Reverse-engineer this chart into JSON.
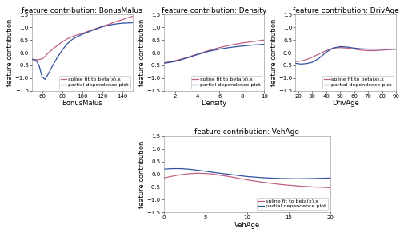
{
  "plots": [
    {
      "title": "feature contribution: BonusMalus",
      "xlabel": "BonusMalus",
      "ylabel": "feature contribution",
      "xlim": [
        50,
        150
      ],
      "ylim": [
        -1.5,
        1.5
      ],
      "xticks": [
        60,
        80,
        100,
        120,
        140
      ],
      "yticks": [
        -1.5,
        -1.0,
        -0.5,
        0.0,
        0.5,
        1.0,
        1.5
      ],
      "spline_x": [
        50,
        54,
        57,
        60,
        63,
        66,
        70,
        75,
        80,
        85,
        90,
        95,
        100,
        105,
        110,
        115,
        120,
        125,
        130,
        135,
        140,
        145,
        150
      ],
      "spline_y": [
        -0.28,
        -0.28,
        -0.27,
        -0.25,
        -0.15,
        -0.02,
        0.12,
        0.28,
        0.42,
        0.54,
        0.63,
        0.7,
        0.76,
        0.83,
        0.9,
        0.97,
        1.04,
        1.1,
        1.17,
        1.24,
        1.3,
        1.37,
        1.43
      ],
      "pdp_x": [
        50,
        54,
        57,
        60,
        63,
        66,
        70,
        75,
        80,
        85,
        90,
        95,
        100,
        105,
        110,
        115,
        120,
        125,
        130,
        135,
        140,
        145,
        150
      ],
      "pdp_y": [
        -0.25,
        -0.3,
        -0.5,
        -0.95,
        -1.05,
        -0.85,
        -0.55,
        -0.2,
        0.1,
        0.35,
        0.52,
        0.63,
        0.72,
        0.8,
        0.88,
        0.95,
        1.02,
        1.07,
        1.11,
        1.14,
        1.16,
        1.17,
        1.18
      ],
      "legend_loc": "lower right"
    },
    {
      "title": "feature contribution: Density",
      "xlabel": "Density",
      "ylabel": "feature contribution",
      "xlim": [
        1,
        10
      ],
      "ylim": [
        -1.5,
        1.5
      ],
      "xticks": [
        2,
        4,
        6,
        8,
        10
      ],
      "yticks": [
        -1.5,
        -1.0,
        -0.5,
        0.0,
        0.5,
        1.0,
        1.5
      ],
      "spline_x": [
        1,
        2,
        3,
        4,
        5,
        6,
        7,
        8,
        9,
        10
      ],
      "spline_y": [
        -0.4,
        -0.32,
        -0.2,
        -0.06,
        0.08,
        0.2,
        0.3,
        0.38,
        0.44,
        0.5
      ],
      "pdp_x": [
        1,
        2,
        3,
        4,
        5,
        6,
        7,
        8,
        9,
        10
      ],
      "pdp_y": [
        -0.42,
        -0.35,
        -0.22,
        -0.08,
        0.05,
        0.14,
        0.21,
        0.26,
        0.3,
        0.33
      ],
      "legend_loc": "lower right"
    },
    {
      "title": "feature contribution: DrivAge",
      "xlabel": "DrivAge",
      "ylabel": "feature contribution",
      "xlim": [
        18,
        90
      ],
      "ylim": [
        -1.5,
        1.5
      ],
      "xticks": [
        20,
        30,
        40,
        50,
        60,
        70,
        80,
        90
      ],
      "yticks": [
        -1.5,
        -1.0,
        -0.5,
        0.0,
        0.5,
        1.0,
        1.5
      ],
      "spline_x": [
        18,
        22,
        26,
        30,
        35,
        40,
        45,
        50,
        55,
        60,
        65,
        70,
        75,
        80,
        85,
        90
      ],
      "spline_y": [
        -0.35,
        -0.33,
        -0.27,
        -0.18,
        -0.05,
        0.08,
        0.18,
        0.2,
        0.18,
        0.14,
        0.1,
        0.08,
        0.08,
        0.1,
        0.12,
        0.14
      ],
      "pdp_x": [
        18,
        22,
        26,
        30,
        35,
        40,
        45,
        50,
        55,
        60,
        65,
        70,
        75,
        80,
        85,
        90
      ],
      "pdp_y": [
        -0.42,
        -0.45,
        -0.43,
        -0.38,
        -0.22,
        0.02,
        0.18,
        0.24,
        0.22,
        0.18,
        0.15,
        0.14,
        0.14,
        0.14,
        0.14,
        0.14
      ],
      "legend_loc": "lower right"
    },
    {
      "title": "feature contribution: VehAge",
      "xlabel": "VehAge",
      "ylabel": "feature contribution",
      "xlim": [
        0,
        20
      ],
      "ylim": [
        -1.5,
        1.5
      ],
      "xticks": [
        0,
        5,
        10,
        15,
        20
      ],
      "yticks": [
        -1.5,
        -1.0,
        -0.5,
        0.0,
        0.5,
        1.0,
        1.5
      ],
      "spline_x": [
        0,
        1,
        2,
        3,
        4,
        5,
        6,
        7,
        8,
        9,
        10,
        12,
        14,
        16,
        18,
        20
      ],
      "spline_y": [
        -0.15,
        -0.08,
        -0.02,
        0.02,
        0.04,
        0.03,
        0.0,
        -0.05,
        -0.1,
        -0.16,
        -0.22,
        -0.32,
        -0.4,
        -0.46,
        -0.5,
        -0.53
      ],
      "pdp_x": [
        0,
        1,
        2,
        3,
        4,
        5,
        6,
        7,
        8,
        9,
        10,
        12,
        14,
        16,
        18,
        20
      ],
      "pdp_y": [
        0.2,
        0.22,
        0.22,
        0.2,
        0.16,
        0.12,
        0.07,
        0.03,
        -0.01,
        -0.05,
        -0.09,
        -0.14,
        -0.17,
        -0.18,
        -0.17,
        -0.15
      ],
      "legend_loc": "lower right"
    }
  ],
  "spline_color": "#c06080",
  "pdp_color": "#3050a0",
  "spline_label": "spline fit to beta(x).x",
  "pdp_label": "partial dependence plot",
  "background_color": "#ffffff",
  "legend_fontsize": 4.5,
  "title_fontsize": 6.5,
  "label_fontsize": 6,
  "tick_fontsize": 5,
  "line_width": 0.9
}
